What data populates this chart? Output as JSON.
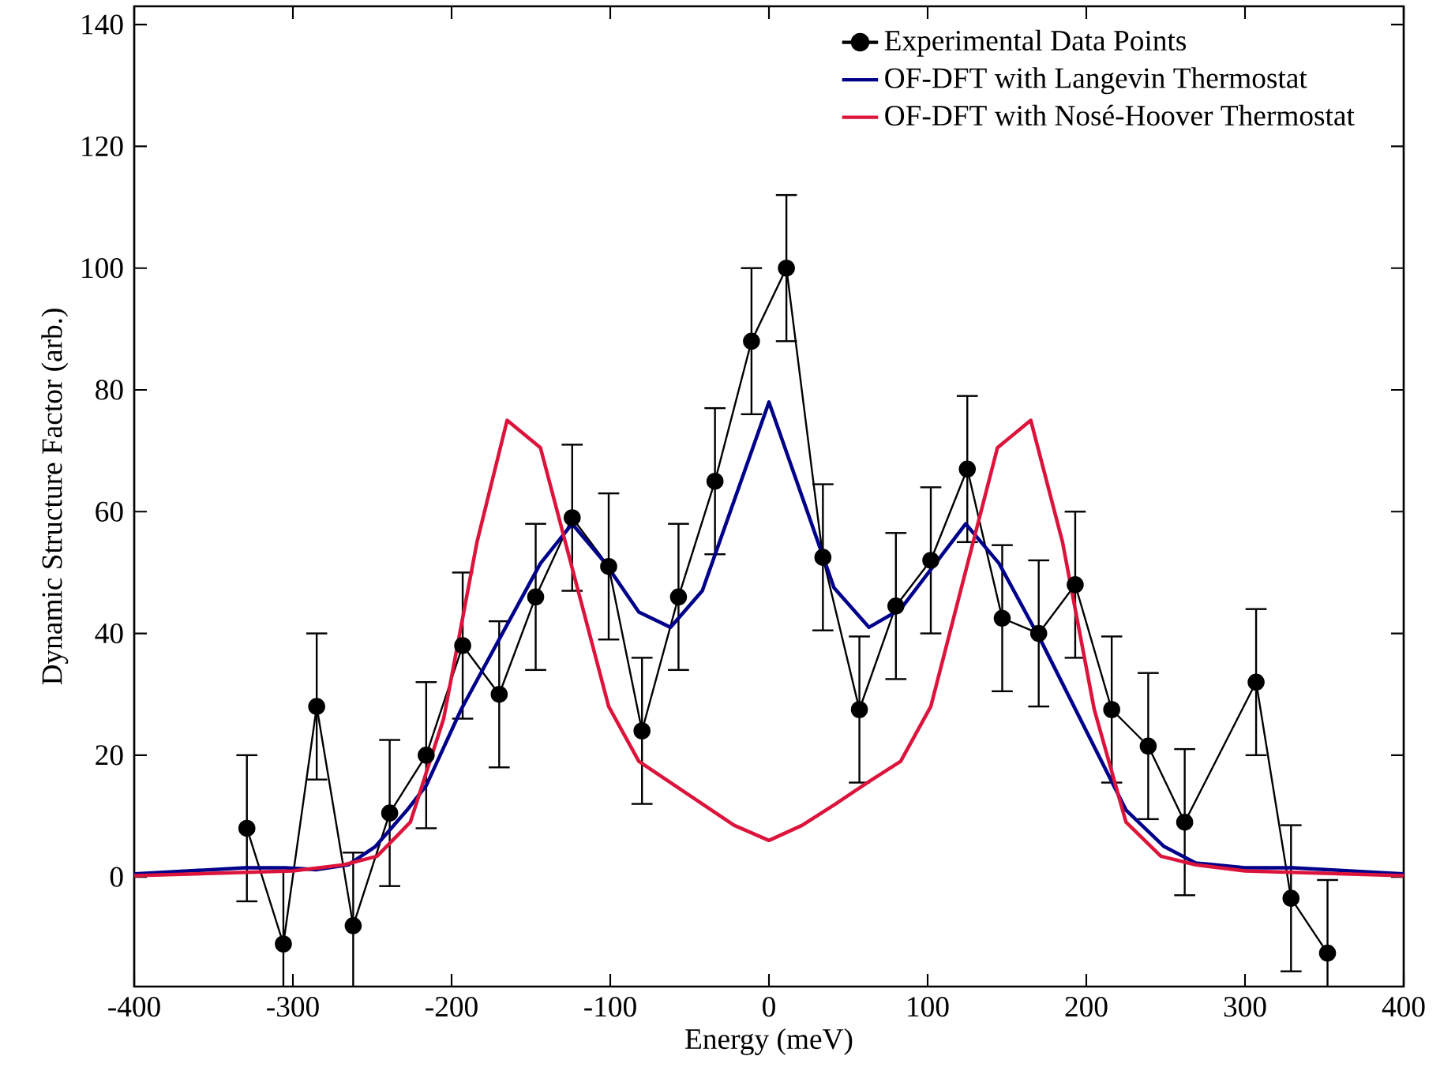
{
  "chart_data": {
    "type": "line",
    "xlabel": "Energy (meV)",
    "ylabel": "Dynamic Structure Factor (arb.)",
    "xlim": [
      -400,
      400
    ],
    "ylim": [
      -18,
      143
    ],
    "xticks": [
      -400,
      -300,
      -200,
      -100,
      0,
      100,
      200,
      300,
      400
    ],
    "yticks": [
      0,
      20,
      40,
      60,
      80,
      100,
      120,
      140
    ],
    "legend": "top right",
    "grid": false,
    "series": [
      {
        "name": "Experimental Data Points",
        "color": "#000000",
        "marker": "circle",
        "x": [
          -329,
          -306,
          -285,
          -262,
          -239,
          -216,
          -193,
          -170,
          -147,
          -124,
          -101,
          -80,
          -57,
          -34,
          -11,
          11,
          34,
          57,
          80,
          102,
          125,
          147,
          170,
          193,
          216,
          239,
          262,
          307,
          329,
          352
        ],
        "values": [
          8,
          -11,
          28,
          -8,
          10.5,
          20,
          38,
          30,
          46,
          59,
          51,
          24,
          46,
          65,
          88,
          100,
          52.5,
          27.5,
          44.5,
          52,
          67,
          42.5,
          40,
          48,
          27.5,
          21.5,
          9,
          32,
          -3.5,
          -12.5
        ],
        "errors": [
          12,
          12,
          12,
          12,
          12,
          12,
          12,
          12,
          12,
          12,
          12,
          12,
          12,
          12,
          12,
          12,
          12,
          12,
          12,
          12,
          12,
          12,
          12,
          12,
          12,
          12,
          12,
          12,
          12,
          12
        ]
      },
      {
        "name": "OF-DFT with Langevin Thermostat",
        "color": "#00008b",
        "x": [
          -400,
          -330,
          -305,
          -285,
          -265,
          -248,
          -228,
          -216,
          -194,
          -168,
          -144,
          -124,
          -103,
          -82,
          -62,
          -42,
          0,
          41,
          63,
          83,
          124,
          145,
          172,
          225,
          249,
          269,
          300,
          330,
          400
        ],
        "values": [
          0.5,
          1.5,
          1.5,
          1.2,
          2,
          5,
          11,
          15,
          27.5,
          40,
          51.5,
          58,
          51.5,
          43.5,
          41,
          47,
          78,
          47.5,
          41,
          44,
          58,
          51.5,
          38.5,
          11,
          5,
          2.3,
          1.5,
          1.5,
          0.5
        ]
      },
      {
        "name": "OF-DFT with Nosé-Hoover Thermostat",
        "color": "#dc143c",
        "x": [
          -400,
          -300,
          -268,
          -247,
          -226,
          -205,
          -184,
          -165,
          -144,
          -101,
          -82,
          -62,
          -42,
          -22,
          0,
          21,
          42,
          62,
          83,
          102,
          144,
          165,
          185,
          205,
          225,
          247,
          269,
          300,
          400
        ],
        "values": [
          0.2,
          1,
          2,
          3.4,
          9,
          26,
          55,
          75,
          70.5,
          28,
          19,
          15.5,
          12,
          8.5,
          6,
          8.5,
          12,
          15.5,
          19,
          28,
          70.5,
          75,
          55,
          27.5,
          9,
          3.4,
          2,
          1,
          0.2
        ]
      }
    ]
  }
}
